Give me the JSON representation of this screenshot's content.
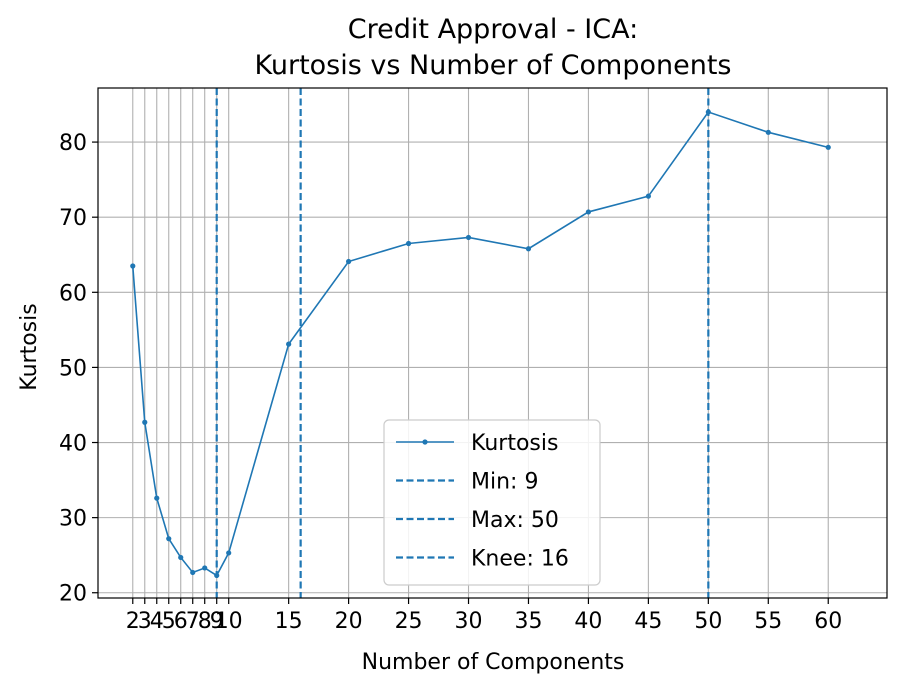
{
  "chart_data": {
    "type": "line",
    "title": [
      "Credit Approval - ICA:",
      "Kurtosis vs Number of Components"
    ],
    "xlabel": "Number of Components",
    "ylabel": "Kurtosis",
    "xlim": [
      -0.9,
      64.9
    ],
    "ylim": [
      19.3,
      87.2
    ],
    "x_ticks": [
      2,
      3,
      4,
      5,
      6,
      7,
      8,
      9,
      10,
      15,
      20,
      25,
      30,
      35,
      40,
      45,
      50,
      55,
      60
    ],
    "x_tick_labels": [
      "2",
      "3",
      "4",
      "5",
      "6",
      "7",
      "8",
      "9",
      "10",
      "15",
      "20",
      "25",
      "30",
      "35",
      "40",
      "45",
      "50",
      "55",
      "60"
    ],
    "y_ticks": [
      20,
      30,
      40,
      50,
      60,
      70,
      80
    ],
    "y_tick_labels": [
      "20",
      "30",
      "40",
      "50",
      "60",
      "70",
      "80"
    ],
    "grid": true,
    "series": [
      {
        "name": "Kurtosis",
        "color": "#1f77b4",
        "marker": "circle",
        "x": [
          2,
          3,
          4,
          5,
          6,
          7,
          8,
          9,
          10,
          15,
          20,
          25,
          30,
          35,
          40,
          45,
          50,
          55,
          60
        ],
        "y": [
          63.5,
          42.7,
          32.6,
          27.2,
          24.7,
          22.7,
          23.3,
          22.3,
          25.3,
          53.1,
          64.1,
          66.5,
          67.3,
          65.8,
          70.7,
          72.8,
          84.0,
          81.3,
          79.3
        ]
      }
    ],
    "vlines": [
      {
        "name": "Min: 9",
        "x": 9,
        "color": "#1f77b4",
        "style": "dashed"
      },
      {
        "name": "Max: 50",
        "x": 50,
        "color": "#1f77b4",
        "style": "dashed"
      },
      {
        "name": "Knee: 16",
        "x": 16,
        "color": "#1f77b4",
        "style": "dashed"
      }
    ],
    "legend": {
      "position": "lower-center",
      "entries": [
        "Kurtosis",
        "Min: 9",
        "Max: 50",
        "Knee: 16"
      ]
    }
  }
}
